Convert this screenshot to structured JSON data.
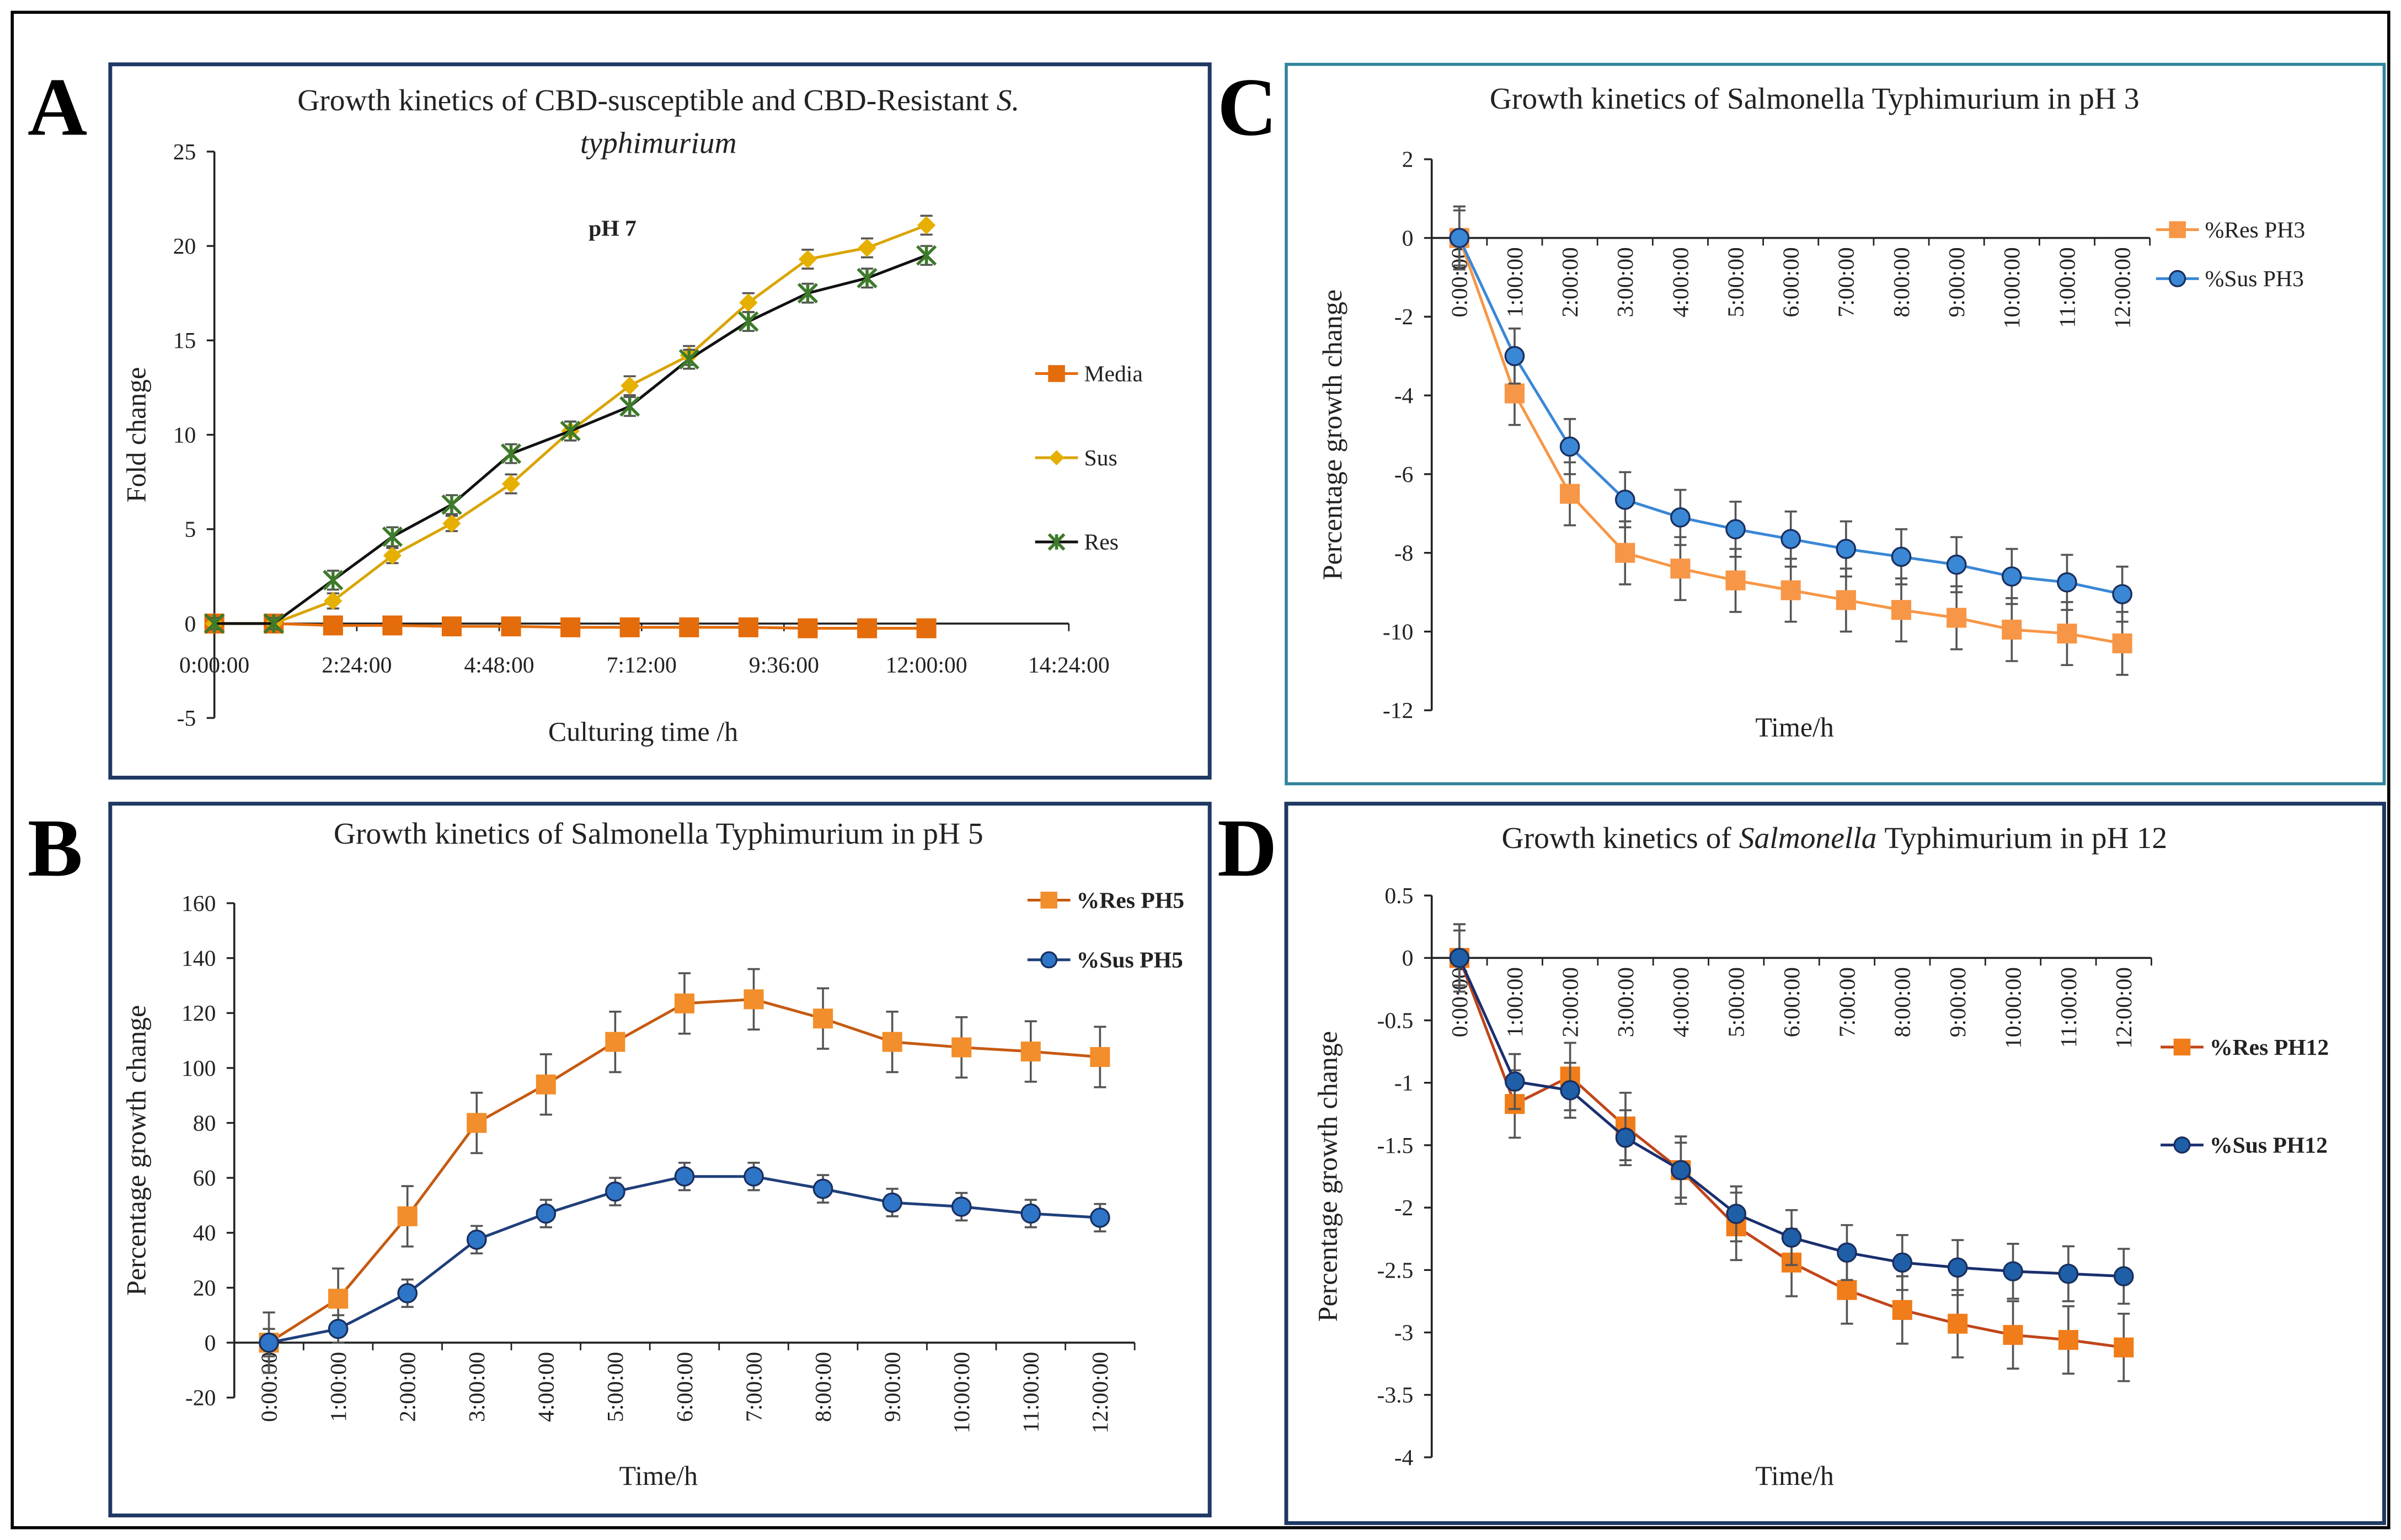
{
  "chart_data": [
    {
      "type": "line",
      "panel": "A",
      "title": [
        [
          {
            "text": "Growth kinetics of CBD-susceptible and CBD-Resistant",
            "italic": false
          },
          {
            "text": "S.",
            "italic": true
          }
        ],
        [
          {
            "text": "typhimurium",
            "italic": true
          }
        ]
      ],
      "annotation": "pH 7",
      "x_label": "Culturing time /h",
      "y_label": "Fold change",
      "x": [
        0,
        1,
        2,
        3,
        4,
        5,
        6,
        7,
        8,
        9,
        10,
        11,
        12
      ],
      "xlim": [
        0,
        14.4
      ],
      "xticks": [
        {
          "value": 0,
          "label": "0:00:00"
        },
        {
          "value": 2.4,
          "label": "2:24:00"
        },
        {
          "value": 4.8,
          "label": "4:48:00"
        },
        {
          "value": 7.2,
          "label": "7:12:00"
        },
        {
          "value": 9.6,
          "label": "9:36:00"
        },
        {
          "value": 12,
          "label": "12:00:00"
        },
        {
          "value": 14.4,
          "label": "14:24:00"
        }
      ],
      "ylim": [
        -5,
        25
      ],
      "yticks": [
        -5,
        0,
        5,
        10,
        15,
        20,
        25
      ],
      "legend": "right",
      "legend_bold": false,
      "series": [
        {
          "name": "Media",
          "color": "#e46c0a",
          "line_color": "#e46c0a",
          "marker": "square",
          "values": [
            0,
            0,
            -0.1,
            -0.1,
            -0.15,
            -0.15,
            -0.2,
            -0.2,
            -0.2,
            -0.2,
            -0.25,
            -0.25,
            -0.25
          ]
        },
        {
          "name": "Sus",
          "color": "#e6b000",
          "line_color": "#d9a400",
          "marker": "diamond",
          "values": [
            0,
            0,
            1.2,
            3.6,
            5.3,
            7.4,
            10.2,
            12.6,
            14.2,
            17.0,
            19.3,
            19.9,
            21.1
          ],
          "errors": [
            0.3,
            0.3,
            0.4,
            0.4,
            0.4,
            0.5,
            0.5,
            0.5,
            0.5,
            0.5,
            0.5,
            0.5,
            0.5
          ]
        },
        {
          "name": "Res",
          "color": "#3d7a2a",
          "line_color": "#111111",
          "marker": "x",
          "values": [
            0,
            0,
            2.3,
            4.6,
            6.3,
            9.0,
            10.2,
            11.5,
            14.0,
            16.0,
            17.5,
            18.3,
            19.5
          ],
          "errors": [
            0.3,
            0.3,
            0.5,
            0.5,
            0.5,
            0.5,
            0.5,
            0.5,
            0.5,
            0.5,
            0.5,
            0.5,
            0.5
          ]
        }
      ]
    },
    {
      "type": "line",
      "panel": "B",
      "title": [
        [
          {
            "text": "Growth kinetics of Salmonella Typhimurium in pH 5",
            "italic": false
          }
        ]
      ],
      "x_label": "Time/h",
      "y_label": "Percentage growth change",
      "categories": [
        "0:00:00",
        "1:00:00",
        "2:00:00",
        "3:00:00",
        "4:00:00",
        "5:00:00",
        "6:00:00",
        "7:00:00",
        "8:00:00",
        "9:00:00",
        "10:00:00",
        "11:00:00",
        "12:00:00"
      ],
      "ylim": [
        -20,
        160
      ],
      "yticks": [
        -20,
        0,
        20,
        40,
        60,
        80,
        100,
        120,
        140,
        160
      ],
      "legend": "top-right",
      "legend_bold": true,
      "series": [
        {
          "name": "%Res PH5",
          "color": "#f28e2b",
          "line_color": "#c55a11",
          "marker": "square",
          "values": [
            0,
            16,
            46,
            80,
            94,
            109.5,
            123.5,
            125,
            118,
            109.5,
            107.5,
            106,
            104
          ],
          "errors": [
            11,
            11,
            11,
            11,
            11,
            11,
            11,
            11,
            11,
            11,
            11,
            11,
            11
          ]
        },
        {
          "name": "%Sus PH5",
          "color": "#2e75c7",
          "line_color": "#1f3f7a",
          "marker": "circle",
          "values": [
            0,
            5,
            18,
            37.5,
            47,
            55,
            60.5,
            60.5,
            56,
            51,
            49.5,
            47,
            45.5
          ],
          "errors": [
            5,
            5,
            5,
            5,
            5,
            5,
            5,
            5,
            5,
            5,
            5,
            5,
            5
          ]
        }
      ]
    },
    {
      "type": "line",
      "panel": "C",
      "title": [
        [
          {
            "text": "Growth kinetics of Salmonella Typhimurium in pH 3",
            "italic": false
          }
        ]
      ],
      "x_label": "Time/h",
      "y_label": "Percentage growth change",
      "categories": [
        "0:00:00",
        "1:00:00",
        "2:00:00",
        "3:00:00",
        "4:00:00",
        "5:00:00",
        "6:00:00",
        "7:00:00",
        "8:00:00",
        "9:00:00",
        "10:00:00",
        "11:00:00",
        "12:00:00"
      ],
      "ylim": [
        -12,
        2
      ],
      "yticks": [
        -12,
        -10,
        -8,
        -6,
        -4,
        -2,
        0,
        2
      ],
      "legend": "top-right",
      "legend_bold": false,
      "series": [
        {
          "name": "%Res PH3",
          "color": "#f79646",
          "line_color": "#f79646",
          "marker": "square",
          "values": [
            0,
            -3.95,
            -6.5,
            -8.0,
            -8.4,
            -8.7,
            -8.95,
            -9.2,
            -9.45,
            -9.65,
            -9.95,
            -10.05,
            -10.3
          ],
          "errors": [
            0.8,
            0.8,
            0.8,
            0.8,
            0.8,
            0.8,
            0.8,
            0.8,
            0.8,
            0.8,
            0.8,
            0.8,
            0.8
          ]
        },
        {
          "name": "%Sus PH3",
          "color": "#3a87d6",
          "line_color": "#3a87d6",
          "marker": "circle",
          "values": [
            0,
            -3.0,
            -5.3,
            -6.65,
            -7.1,
            -7.4,
            -7.65,
            -7.9,
            -8.1,
            -8.3,
            -8.6,
            -8.75,
            -9.05
          ],
          "errors": [
            0.7,
            0.7,
            0.7,
            0.7,
            0.7,
            0.7,
            0.7,
            0.7,
            0.7,
            0.7,
            0.7,
            0.7,
            0.7
          ]
        }
      ]
    },
    {
      "type": "line",
      "panel": "D",
      "title": [
        [
          {
            "text": "Growth kinetics of",
            "italic": false
          },
          {
            "text": "Salmonella",
            "italic": true
          },
          {
            "text": "Typhimurium in pH 12",
            "italic": false
          }
        ]
      ],
      "x_label": "Time/h",
      "y_label": "Percentage growth change",
      "categories": [
        "0:00:00",
        "1:00:00",
        "2:00:00",
        "3:00:00",
        "4:00:00",
        "5:00:00",
        "6:00:00",
        "7:00:00",
        "8:00:00",
        "9:00:00",
        "10:00:00",
        "11:00:00",
        "12:00:00"
      ],
      "ylim": [
        -4,
        0.5
      ],
      "yticks": [
        -4,
        -3.5,
        -3,
        -2.5,
        -2,
        -1.5,
        -1,
        -0.5,
        0,
        0.5
      ],
      "legend": "right",
      "legend_bold": true,
      "series": [
        {
          "name": "%Res PH12",
          "color": "#f07d1a",
          "line_color": "#c0451a",
          "marker": "square",
          "values": [
            0,
            -1.17,
            -0.95,
            -1.35,
            -1.7,
            -2.15,
            -2.44,
            -2.66,
            -2.82,
            -2.93,
            -3.02,
            -3.06,
            -3.12
          ],
          "errors": [
            0.27,
            0.27,
            0.27,
            0.27,
            0.27,
            0.27,
            0.27,
            0.27,
            0.27,
            0.27,
            0.27,
            0.27,
            0.27
          ]
        },
        {
          "name": "%Sus PH12",
          "color": "#1f5fa8",
          "line_color": "#1a2f6e",
          "marker": "circle",
          "values": [
            0,
            -0.99,
            -1.06,
            -1.44,
            -1.7,
            -2.05,
            -2.24,
            -2.36,
            -2.44,
            -2.48,
            -2.51,
            -2.53,
            -2.55
          ],
          "errors": [
            0.22,
            0.22,
            0.22,
            0.22,
            0.22,
            0.22,
            0.22,
            0.22,
            0.22,
            0.22,
            0.22,
            0.22,
            0.22
          ]
        }
      ]
    }
  ]
}
